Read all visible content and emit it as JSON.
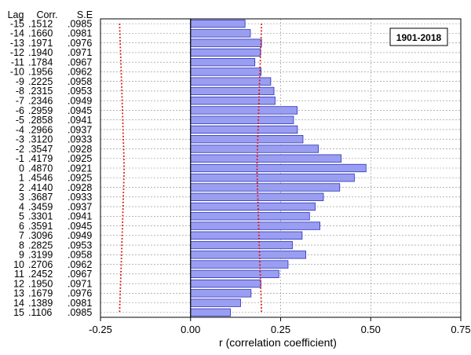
{
  "chart_data": {
    "type": "bar",
    "orientation": "horizontal",
    "column_headers": {
      "lag": "Lag",
      "corr": "Corr.",
      "se": "S.E"
    },
    "rows": [
      {
        "lag": "-15",
        "corr": ".1512",
        "se": ".0985"
      },
      {
        "lag": "-14",
        "corr": ".1660",
        "se": ".0981"
      },
      {
        "lag": "-13",
        "corr": ".1971",
        "se": ".0976"
      },
      {
        "lag": "-12",
        "corr": ".1940",
        "se": ".0971"
      },
      {
        "lag": "-11",
        "corr": ".1784",
        "se": ".0967"
      },
      {
        "lag": "-10",
        "corr": ".1956",
        "se": ".0962"
      },
      {
        "lag": "-9",
        "corr": ".2225",
        "se": ".0958"
      },
      {
        "lag": "-8",
        "corr": ".2315",
        "se": ".0953"
      },
      {
        "lag": "-7",
        "corr": ".2346",
        "se": ".0949"
      },
      {
        "lag": "-6",
        "corr": ".2959",
        "se": ".0945"
      },
      {
        "lag": "-5",
        "corr": ".2858",
        "se": ".0941"
      },
      {
        "lag": "-4",
        "corr": ".2966",
        "se": ".0937"
      },
      {
        "lag": "-3",
        "corr": ".3120",
        "se": ".0933"
      },
      {
        "lag": "-2",
        "corr": ".3547",
        "se": ".0928"
      },
      {
        "lag": "-1",
        "corr": ".4179",
        "se": ".0925"
      },
      {
        "lag": "0",
        "corr": ".4870",
        "se": ".0921"
      },
      {
        "lag": "1",
        "corr": ".4546",
        "se": ".0925"
      },
      {
        "lag": "2",
        "corr": ".4140",
        "se": ".0928"
      },
      {
        "lag": "3",
        "corr": ".3687",
        "se": ".0933"
      },
      {
        "lag": "4",
        "corr": ".3459",
        "se": ".0937"
      },
      {
        "lag": "5",
        "corr": ".3301",
        "se": ".0941"
      },
      {
        "lag": "6",
        "corr": ".3591",
        "se": ".0945"
      },
      {
        "lag": "7",
        "corr": ".3096",
        "se": ".0949"
      },
      {
        "lag": "8",
        "corr": ".2825",
        "se": ".0953"
      },
      {
        "lag": "9",
        "corr": ".3199",
        "se": ".0958"
      },
      {
        "lag": "10",
        "corr": ".2706",
        "se": ".0962"
      },
      {
        "lag": "11",
        "corr": ".2452",
        "se": ".0967"
      },
      {
        "lag": "12",
        "corr": ".1950",
        "se": ".0971"
      },
      {
        "lag": "13",
        "corr": ".1679",
        "se": ".0976"
      },
      {
        "lag": "14",
        "corr": ".1389",
        "se": ".0981"
      },
      {
        "lag": "15",
        "corr": ".1106",
        "se": ".0985"
      }
    ],
    "xlabel": "r (correlation coefficient)",
    "ylabel": "",
    "xlim": [
      -0.25,
      0.75
    ],
    "xticks": [
      -0.25,
      0.0,
      0.25,
      0.5,
      0.75
    ],
    "xtick_labels": [
      "-0.25",
      "0.00",
      "0.25",
      "0.50",
      "0.75"
    ],
    "annotation": "1901-2018",
    "confidence_limit_multiplier": 2,
    "grid": true,
    "colors": {
      "bar_fill": "#9a9ef0",
      "bar_stroke": "#2b2fbf",
      "confidence_line": "#e01010",
      "grid": "#888888",
      "axis": "#000000"
    }
  }
}
